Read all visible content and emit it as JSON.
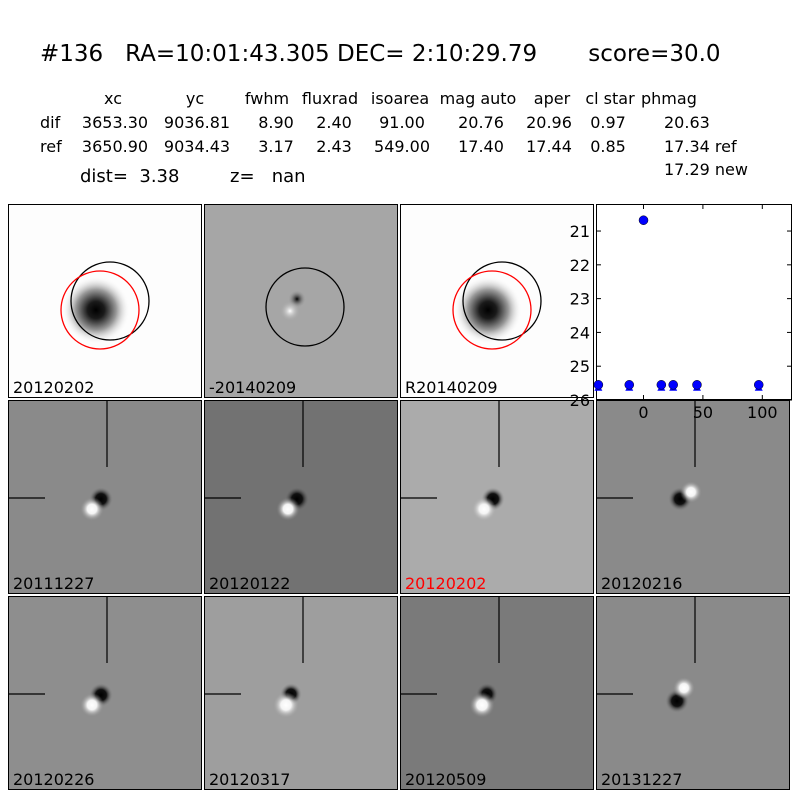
{
  "header": {
    "title": "#136   RA=10:01:43.305 DEC= 2:10:29.79       score=30.0",
    "columns": [
      "xc",
      "yc",
      "fwhm",
      "fluxrad",
      "isoarea",
      "mag auto",
      "aper",
      "cl star",
      "phmag"
    ],
    "rows": [
      {
        "label": "dif",
        "values": [
          "3653.30",
          "9036.81",
          "8.90",
          "2.40",
          "91.00",
          "20.76",
          "20.96",
          "0.97",
          "20.63"
        ]
      },
      {
        "label": "ref",
        "values": [
          "3650.90",
          "9034.43",
          "3.17",
          "2.43",
          "549.00",
          "17.40",
          "17.44",
          "0.85",
          "17.34 ref"
        ]
      }
    ],
    "phmag_new": "17.29 new",
    "dist": "dist=  3.38",
    "z": "z=   nan"
  },
  "stamps": [
    {
      "label": "20120202",
      "style": "source",
      "circles": [
        "black",
        "red"
      ]
    },
    {
      "label": "-20140209",
      "style": "diff",
      "circles": [
        "black"
      ]
    },
    {
      "label": "R20140209",
      "style": "source",
      "circles": [
        "black",
        "red"
      ]
    }
  ],
  "cutouts": [
    {
      "label": "20111227",
      "label_color": "#000000",
      "bg": "#8a8a8a",
      "orient": 0
    },
    {
      "label": "20120122",
      "label_color": "#000000",
      "bg": "#727272",
      "orient": 0
    },
    {
      "label": "20120202",
      "label_color": "#ff0000",
      "bg": "#ababab",
      "orient": 0
    },
    {
      "label": "20120216",
      "label_color": "#000000",
      "bg": "#8a8a8a",
      "orient": 1
    },
    {
      "label": "20120226",
      "label_color": "#000000",
      "bg": "#8e8e8e",
      "orient": 0
    },
    {
      "label": "20120317",
      "label_color": "#000000",
      "bg": "#9e9e9e",
      "orient": 2
    },
    {
      "label": "20120509",
      "label_color": "#000000",
      "bg": "#7a7a7a",
      "orient": 2
    },
    {
      "label": "20131227",
      "label_color": "#000000",
      "bg": "#8a8a8a",
      "orient": 3
    }
  ],
  "chart_data": {
    "type": "scatter",
    "title": "",
    "xlabel": "",
    "ylabel": "",
    "xlim": [
      -40,
      125
    ],
    "ylim": [
      26,
      20.2
    ],
    "y_inverted": true,
    "xticks": [
      0,
      50,
      100
    ],
    "yticks": [
      21,
      22,
      23,
      24,
      25,
      26
    ],
    "marker_color": "#0000ff",
    "series": [
      {
        "marker": "circle",
        "x": [
          -38,
          -12,
          0,
          15,
          25,
          45,
          97
        ],
        "y": [
          25.55,
          25.55,
          20.68,
          25.55,
          25.55,
          25.55,
          25.55
        ]
      }
    ]
  }
}
